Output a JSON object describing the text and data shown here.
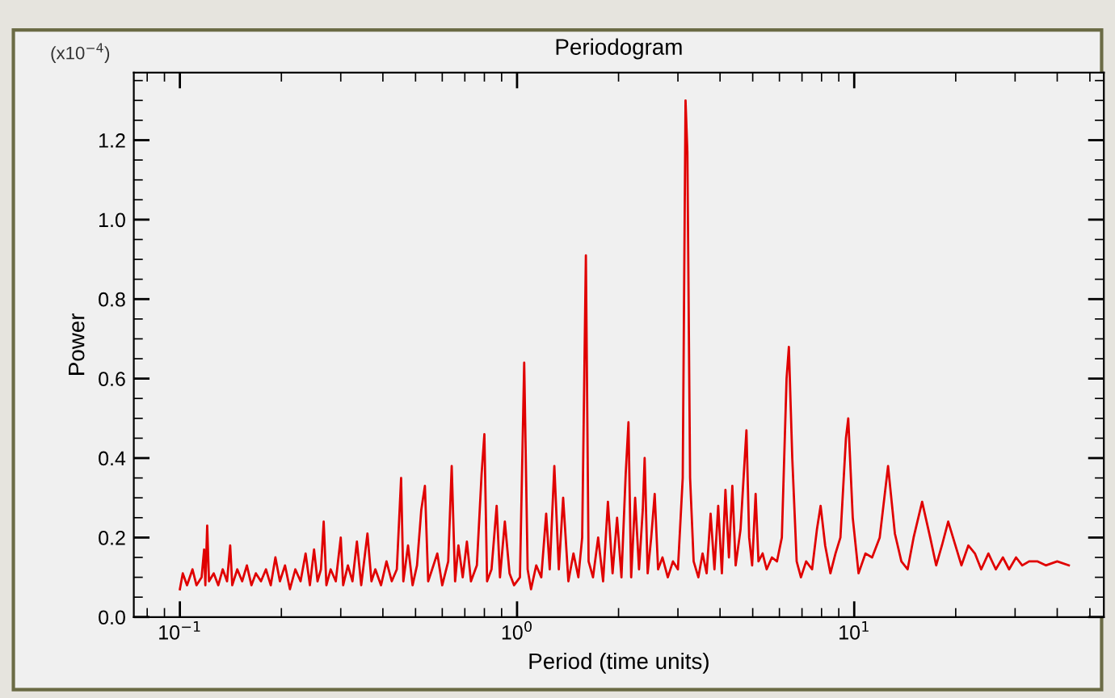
{
  "chart_data": {
    "type": "line",
    "title": "Periodogram",
    "xlabel": "Period (time units)",
    "ylabel": "Power",
    "annotations": [
      "(x10$^{−4}$)"
    ],
    "log": "x",
    "grid": false,
    "marker": "none",
    "line_style": "solid",
    "xlim": [
      0.073,
      55
    ],
    "xticks": [
      {
        "value": 0.1,
        "label": "10$^{−1}$"
      },
      {
        "value": 1,
        "label": "10$^{0}$"
      },
      {
        "value": 10,
        "label": "10$^{1}$"
      }
    ],
    "ylim": [
      0,
      1.37
    ],
    "yticks": [
      {
        "value": 0,
        "label": "0.0"
      },
      0.2,
      0.4,
      0.6,
      0.8,
      {
        "value": 1.0,
        "label": "1.0"
      },
      1.2
    ],
    "series": [
      {
        "color": "#e00000",
        "x": [
          0.1,
          0.102,
          0.105,
          0.109,
          0.112,
          0.116,
          0.118,
          0.119,
          0.1205,
          0.122,
          0.126,
          0.13,
          0.134,
          0.138,
          0.141,
          0.143,
          0.148,
          0.153,
          0.158,
          0.163,
          0.168,
          0.174,
          0.18,
          0.186,
          0.192,
          0.198,
          0.205,
          0.212,
          0.22,
          0.228,
          0.236,
          0.243,
          0.25,
          0.256,
          0.262,
          0.267,
          0.272,
          0.28,
          0.29,
          0.3,
          0.305,
          0.315,
          0.325,
          0.335,
          0.345,
          0.36,
          0.37,
          0.38,
          0.395,
          0.41,
          0.425,
          0.44,
          0.453,
          0.46,
          0.475,
          0.49,
          0.505,
          0.52,
          0.533,
          0.545,
          0.56,
          0.58,
          0.6,
          0.625,
          0.64,
          0.655,
          0.67,
          0.69,
          0.71,
          0.73,
          0.76,
          0.785,
          0.8,
          0.815,
          0.84,
          0.87,
          0.89,
          0.92,
          0.95,
          0.98,
          1.02,
          1.05,
          1.075,
          1.1,
          1.14,
          1.18,
          1.22,
          1.25,
          1.29,
          1.33,
          1.37,
          1.42,
          1.47,
          1.52,
          1.56,
          1.6,
          1.63,
          1.68,
          1.74,
          1.8,
          1.86,
          1.92,
          1.98,
          2.04,
          2.1,
          2.14,
          2.18,
          2.24,
          2.3,
          2.36,
          2.39,
          2.44,
          2.5,
          2.56,
          2.62,
          2.7,
          2.8,
          2.9,
          3.0,
          3.1,
          3.16,
          3.2,
          3.26,
          3.34,
          3.45,
          3.55,
          3.65,
          3.75,
          3.85,
          3.95,
          4.05,
          4.15,
          4.25,
          4.35,
          4.45,
          4.6,
          4.72,
          4.79,
          4.88,
          4.98,
          5.1,
          5.2,
          5.35,
          5.5,
          5.7,
          5.9,
          6.1,
          6.3,
          6.4,
          6.55,
          6.75,
          6.95,
          7.2,
          7.5,
          7.75,
          7.95,
          8.2,
          8.5,
          8.8,
          9.1,
          9.45,
          9.6,
          9.9,
          10.3,
          10.8,
          11.3,
          11.9,
          12.6,
          13.2,
          13.8,
          14.4,
          15.0,
          15.9,
          16.8,
          17.5,
          18.2,
          19.0,
          19.8,
          20.8,
          21.8,
          22.8,
          23.8,
          25.0,
          26.3,
          27.6,
          28.8,
          30.2,
          31.5,
          33.0,
          35.0,
          37.0,
          40.0,
          43.3
        ],
        "values": [
          0.07,
          0.11,
          0.08,
          0.12,
          0.08,
          0.1,
          0.17,
          0.08,
          0.23,
          0.09,
          0.11,
          0.08,
          0.12,
          0.09,
          0.18,
          0.08,
          0.12,
          0.09,
          0.13,
          0.08,
          0.11,
          0.09,
          0.12,
          0.08,
          0.15,
          0.09,
          0.13,
          0.07,
          0.12,
          0.09,
          0.16,
          0.08,
          0.17,
          0.09,
          0.12,
          0.24,
          0.08,
          0.12,
          0.09,
          0.2,
          0.08,
          0.13,
          0.09,
          0.19,
          0.08,
          0.21,
          0.09,
          0.12,
          0.08,
          0.14,
          0.09,
          0.12,
          0.35,
          0.09,
          0.18,
          0.08,
          0.13,
          0.27,
          0.33,
          0.09,
          0.12,
          0.16,
          0.08,
          0.14,
          0.38,
          0.09,
          0.18,
          0.1,
          0.19,
          0.09,
          0.13,
          0.36,
          0.46,
          0.09,
          0.12,
          0.28,
          0.1,
          0.24,
          0.11,
          0.08,
          0.1,
          0.64,
          0.12,
          0.07,
          0.13,
          0.1,
          0.26,
          0.12,
          0.38,
          0.12,
          0.3,
          0.09,
          0.16,
          0.1,
          0.2,
          0.91,
          0.14,
          0.1,
          0.2,
          0.09,
          0.29,
          0.11,
          0.25,
          0.1,
          0.36,
          0.49,
          0.1,
          0.3,
          0.12,
          0.27,
          0.4,
          0.11,
          0.2,
          0.31,
          0.12,
          0.15,
          0.1,
          0.14,
          0.12,
          0.35,
          1.3,
          1.17,
          0.35,
          0.14,
          0.1,
          0.16,
          0.11,
          0.26,
          0.12,
          0.28,
          0.11,
          0.32,
          0.15,
          0.33,
          0.13,
          0.22,
          0.38,
          0.47,
          0.2,
          0.13,
          0.31,
          0.14,
          0.16,
          0.12,
          0.15,
          0.14,
          0.2,
          0.6,
          0.68,
          0.4,
          0.14,
          0.1,
          0.14,
          0.12,
          0.22,
          0.28,
          0.18,
          0.11,
          0.16,
          0.2,
          0.45,
          0.5,
          0.25,
          0.11,
          0.16,
          0.15,
          0.2,
          0.38,
          0.21,
          0.14,
          0.12,
          0.2,
          0.29,
          0.2,
          0.13,
          0.18,
          0.24,
          0.19,
          0.13,
          0.18,
          0.16,
          0.12,
          0.16,
          0.12,
          0.15,
          0.12,
          0.15,
          0.13,
          0.14,
          0.14,
          0.13,
          0.14,
          0.13
        ]
      }
    ]
  }
}
